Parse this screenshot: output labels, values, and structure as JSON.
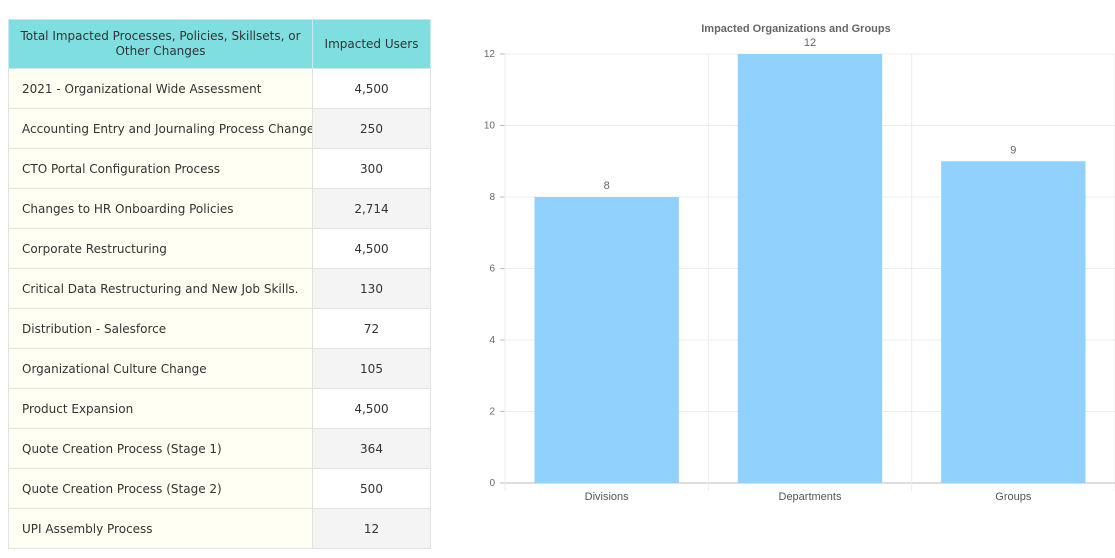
{
  "table": {
    "headers": [
      "Total Impacted Processes, Policies, Skillsets, or Other Changes",
      "Impacted Users"
    ],
    "rows": [
      [
        "2021 - Organizational Wide Assessment",
        "4,500"
      ],
      [
        "Accounting Entry and Journaling Process Change",
        "250"
      ],
      [
        "CTO Portal Configuration Process",
        "300"
      ],
      [
        "Changes to HR Onboarding Policies",
        "2,714"
      ],
      [
        "Corporate Restructuring",
        "4,500"
      ],
      [
        "Critical Data Restructuring and New Job Skills.",
        "130"
      ],
      [
        "Distribution - Salesforce",
        "72"
      ],
      [
        "Organizational Culture Change",
        "105"
      ],
      [
        "Product Expansion",
        "4,500"
      ],
      [
        "Quote Creation Process (Stage 1)",
        "364"
      ],
      [
        "Quote Creation Process (Stage 2)",
        "500"
      ],
      [
        "UPI Assembly Process",
        "12"
      ]
    ]
  },
  "colors": {
    "header_bg": "#7fdfe0",
    "bar": "#90d1fd"
  },
  "chart_data": {
    "type": "bar",
    "title": "Impacted Organizations and Groups",
    "categories": [
      "Divisions",
      "Departments",
      "Groups"
    ],
    "values": [
      8,
      12,
      9
    ],
    "data_labels": [
      "8",
      "12",
      "9"
    ],
    "xlabel": "",
    "ylabel": "",
    "ylim": [
      0,
      12
    ],
    "yticks": [
      0,
      2,
      4,
      6,
      8,
      10,
      12
    ],
    "grid": true,
    "legend": "none"
  }
}
